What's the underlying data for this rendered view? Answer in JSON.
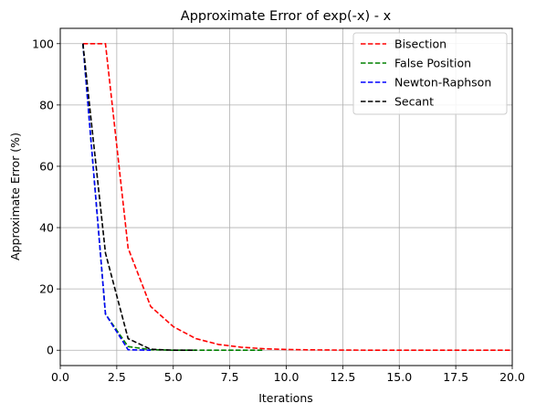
{
  "chart_data": {
    "type": "line",
    "title": "Approximate Error of exp(-x) - x",
    "xlabel": "Iterations",
    "ylabel": "Approximate Error (%)",
    "xlim": [
      0,
      20
    ],
    "ylim": [
      -5,
      105
    ],
    "x_ticks": [
      0,
      2.5,
      5,
      7.5,
      10,
      12.5,
      15,
      17.5,
      20
    ],
    "x_tick_labels": [
      "0.0",
      "2.5",
      "5.0",
      "7.5",
      "10.0",
      "12.5",
      "15.0",
      "17.5",
      "20.0"
    ],
    "y_ticks": [
      0,
      20,
      40,
      60,
      80,
      100
    ],
    "y_tick_labels": [
      "0",
      "20",
      "40",
      "60",
      "80",
      "100"
    ],
    "grid": true,
    "legend_position": "top-right",
    "series": [
      {
        "name": "Bisection",
        "color": "#ff0000",
        "x": [
          1,
          2,
          3,
          4,
          5,
          6,
          7,
          8,
          9,
          10,
          11,
          12,
          13,
          14,
          15,
          16,
          17,
          18,
          19,
          20
        ],
        "y": [
          100,
          100,
          33.3,
          14.3,
          7.7,
          3.8,
          1.9,
          1.0,
          0.5,
          0.24,
          0.12,
          0.06,
          0.03,
          0.015,
          0.01,
          0.005,
          0.002,
          0.001,
          0.0005,
          0.0003
        ]
      },
      {
        "name": "False Position",
        "color": "#008000",
        "x": [
          1,
          2,
          3,
          4,
          5,
          6,
          7,
          8,
          9
        ],
        "y": [
          100,
          11.8,
          1.2,
          0.15,
          0.02,
          0.003,
          0.0004,
          0.0001,
          0.0
        ]
      },
      {
        "name": "Newton-Raphson",
        "color": "#0000ff",
        "x": [
          1,
          2,
          3,
          4
        ],
        "y": [
          100,
          11.8,
          0.15,
          0.0
        ]
      },
      {
        "name": "Secant",
        "color": "#000000",
        "x": [
          1,
          2,
          3,
          4,
          5,
          6
        ],
        "y": [
          100,
          31.7,
          3.8,
          0.3,
          0.01,
          0.0
        ]
      }
    ]
  }
}
